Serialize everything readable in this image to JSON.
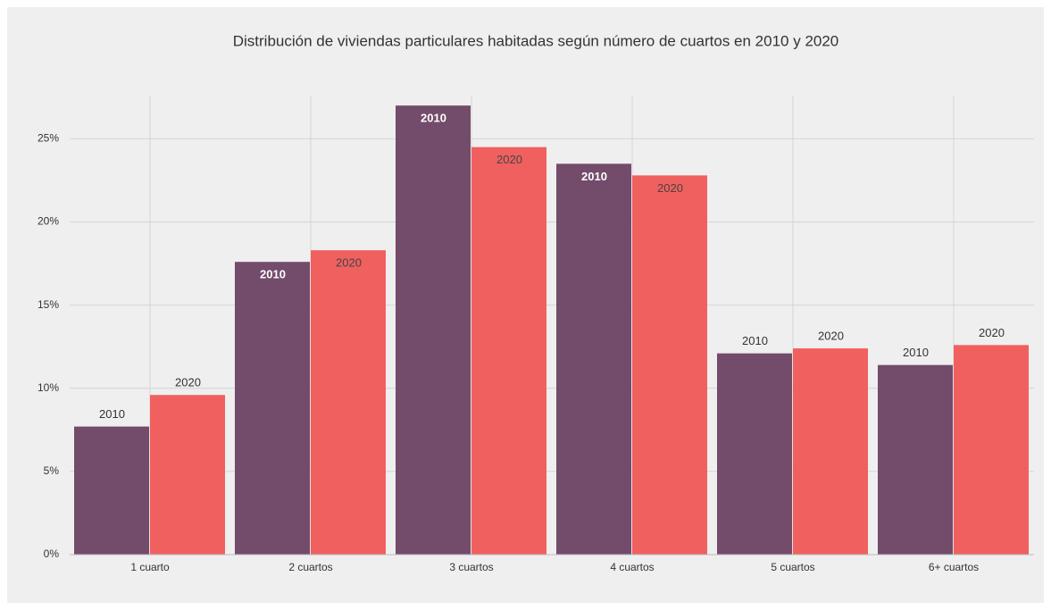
{
  "chart_data": {
    "type": "bar",
    "title": "Distribución de viviendas particulares habitadas según número de cuartos en 2010 y 2020",
    "categories": [
      "1 cuarto",
      "2 cuartos",
      "3 cuartos",
      "4 cuartos",
      "5 cuartos",
      "6+ cuartos"
    ],
    "series": [
      {
        "name": "2010",
        "color": "#734b6b",
        "values": [
          7.7,
          17.6,
          27.0,
          23.5,
          12.1,
          11.4
        ]
      },
      {
        "name": "2020",
        "color": "#f0605f",
        "values": [
          9.6,
          18.3,
          24.5,
          22.8,
          12.4,
          12.6
        ]
      }
    ],
    "ylim": [
      0,
      27.6
    ],
    "yticks": [
      {
        "value": 0,
        "label": "0%"
      },
      {
        "value": 5,
        "label": "5%"
      },
      {
        "value": 10,
        "label": "10%"
      },
      {
        "value": 15,
        "label": "15%"
      },
      {
        "value": 20,
        "label": "20%"
      },
      {
        "value": 25,
        "label": "25%"
      }
    ],
    "grid": true
  }
}
